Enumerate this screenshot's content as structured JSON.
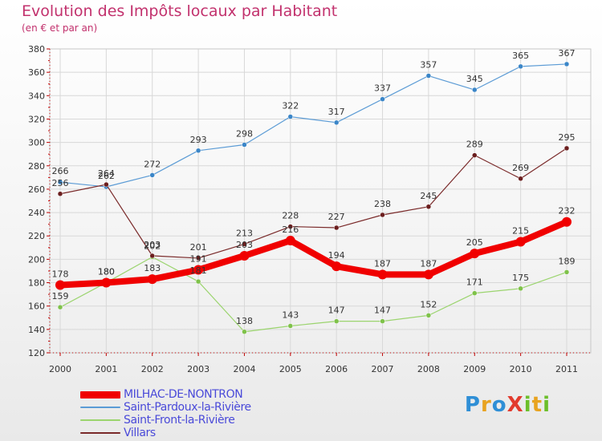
{
  "title": "Evolution des Impôts locaux par Habitant",
  "subtitle": "(en € et par an)",
  "brand": {
    "text": "Proxiti",
    "letters": [
      {
        "ch": "P",
        "color": "#2f8fd6"
      },
      {
        "ch": "r",
        "color": "#e8a320"
      },
      {
        "ch": "o",
        "color": "#2f8fd6"
      },
      {
        "ch": "X",
        "color": "#e23b2e"
      },
      {
        "ch": "i",
        "color": "#6cbf2a"
      },
      {
        "ch": "t",
        "color": "#e8a320"
      },
      {
        "ch": "i",
        "color": "#6cbf2a"
      }
    ]
  },
  "chart_data": {
    "type": "line",
    "x": [
      "2000",
      "2001",
      "2002",
      "2003",
      "2004",
      "2005",
      "2006",
      "2007",
      "2008",
      "2009",
      "2010",
      "2011"
    ],
    "ylim": [
      120,
      380
    ],
    "yticks": [
      120,
      140,
      160,
      180,
      200,
      220,
      240,
      260,
      280,
      300,
      320,
      340,
      360,
      380
    ],
    "grid": true,
    "legend_position": "bottom-left",
    "series": [
      {
        "name": "Saint-Pardoux-la-Rivière",
        "color": "#5b9bd5",
        "point_color": "#3b86c8",
        "width": 1.2,
        "values": [
          266,
          262,
          272,
          293,
          298,
          322,
          317,
          337,
          357,
          345,
          365,
          367
        ]
      },
      {
        "name": "Saint-Front-la-Rivière",
        "color": "#9bd46e",
        "point_color": "#7fc24a",
        "width": 1.2,
        "values": [
          159,
          180,
          202,
          181,
          138,
          143,
          147,
          147,
          152,
          171,
          175,
          189
        ]
      },
      {
        "name": "Villars",
        "color": "#7a2a2a",
        "point_color": "#6b1e1e",
        "width": 1.2,
        "values": [
          256,
          264,
          203,
          201,
          213,
          228,
          227,
          238,
          245,
          289,
          269,
          295
        ]
      },
      {
        "name": "MILHAC-DE-NONTRON",
        "color": "#f00000",
        "point_color": "#f00000",
        "width": 8,
        "values": [
          178,
          180,
          183,
          191,
          203,
          216,
          194,
          187,
          187,
          205,
          215,
          232
        ]
      }
    ],
    "legend_order": [
      "MILHAC-DE-NONTRON",
      "Saint-Pardoux-la-Rivière",
      "Saint-Front-la-Rivière",
      "Villars"
    ],
    "value_labels": [
      [
        "266",
        "262",
        "272",
        "293",
        "298",
        "322",
        "317",
        "337",
        "357",
        "345",
        "365",
        "367"
      ],
      [
        "159",
        "180",
        "202",
        "181",
        "138",
        "143",
        "147",
        "147",
        "152",
        "171",
        "175",
        "189"
      ],
      [
        "256",
        "264",
        "203",
        "201",
        "213",
        "228",
        "227",
        "238",
        "245",
        "289",
        "269",
        "295"
      ],
      [
        "178",
        "180",
        "183",
        "191",
        "203",
        "216",
        "194",
        "187",
        "187",
        "205",
        "215",
        "232"
      ]
    ]
  }
}
